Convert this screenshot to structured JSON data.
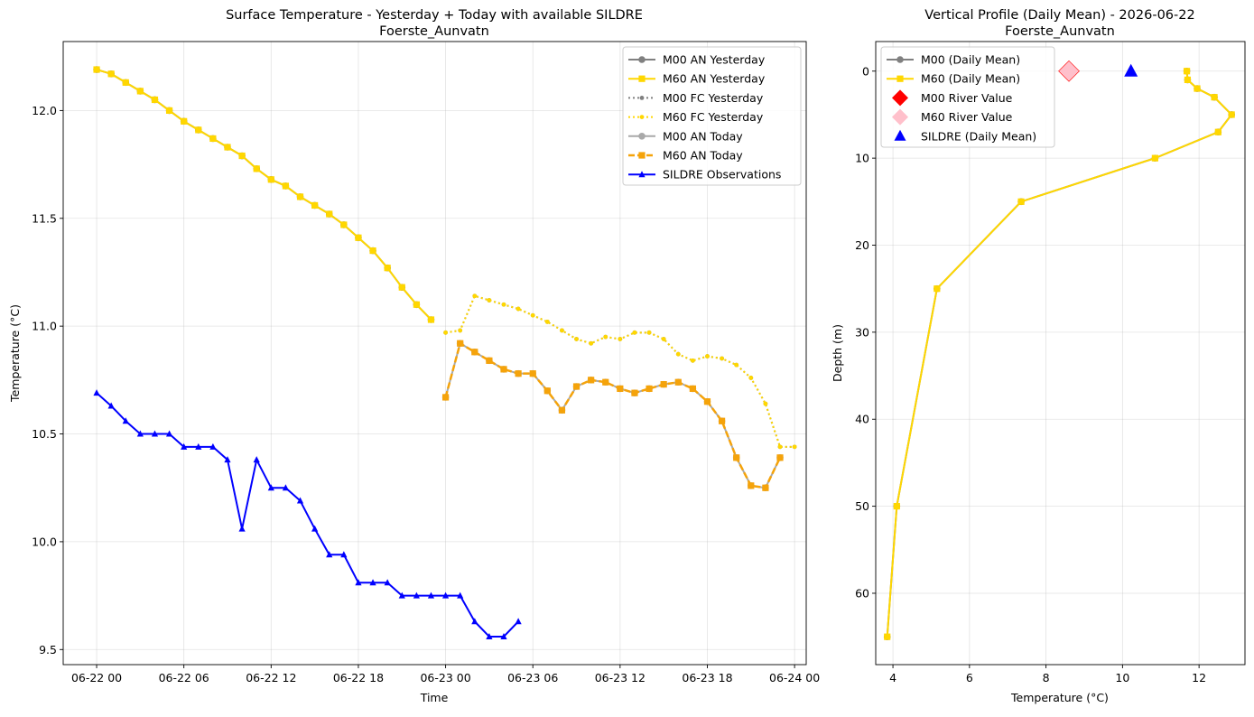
{
  "chart_data": [
    {
      "type": "line",
      "title_line1": "Surface Temperature - Yesterday + Today with available SILDRE",
      "title_line2": "Foerste_Aunvatn",
      "xlabel": "Time",
      "ylabel": "Temperature (°C)",
      "xlim_hours": [
        -2.3,
        48.8
      ],
      "ylim": [
        9.43,
        12.32
      ],
      "x_unit": "hours since 2026-06-22 00:00",
      "xticks": [
        {
          "x": 0,
          "label": "06-22 00"
        },
        {
          "x": 6,
          "label": "06-22 06"
        },
        {
          "x": 12,
          "label": "06-22 12"
        },
        {
          "x": 18,
          "label": "06-22 18"
        },
        {
          "x": 24,
          "label": "06-23 00"
        },
        {
          "x": 30,
          "label": "06-23 06"
        },
        {
          "x": 36,
          "label": "06-23 12"
        },
        {
          "x": 42,
          "label": "06-23 18"
        },
        {
          "x": 48,
          "label": "06-24 00"
        }
      ],
      "yticks": [
        9.5,
        10.0,
        10.5,
        11.0,
        11.5,
        12.0
      ],
      "grid": true,
      "legend_position": "upper right",
      "series": [
        {
          "name": "M00 AN Yesterday",
          "color": "#808080",
          "style": "solid",
          "marker": "circle",
          "width": 2,
          "x": [
            0,
            1,
            2,
            3,
            4,
            5,
            6,
            7,
            8,
            9,
            10,
            11,
            12,
            13,
            14,
            15,
            16,
            17,
            18,
            19,
            20,
            21,
            22,
            23
          ],
          "y": [
            12.19,
            12.17,
            12.13,
            12.09,
            12.05,
            12.0,
            11.95,
            11.91,
            11.87,
            11.83,
            11.79,
            11.73,
            11.68,
            11.65,
            11.6,
            11.56,
            11.52,
            11.47,
            11.41,
            11.35,
            11.27,
            11.18,
            11.1,
            11.03
          ]
        },
        {
          "name": "M60 AN Yesterday",
          "color": "#FFD700",
          "style": "solid",
          "marker": "square",
          "width": 2,
          "x": [
            0,
            1,
            2,
            3,
            4,
            5,
            6,
            7,
            8,
            9,
            10,
            11,
            12,
            13,
            14,
            15,
            16,
            17,
            18,
            19,
            20,
            21,
            22,
            23
          ],
          "y": [
            12.19,
            12.17,
            12.13,
            12.09,
            12.05,
            12.0,
            11.95,
            11.91,
            11.87,
            11.83,
            11.79,
            11.73,
            11.68,
            11.65,
            11.6,
            11.56,
            11.52,
            11.47,
            11.41,
            11.35,
            11.27,
            11.18,
            11.1,
            11.03
          ]
        },
        {
          "name": "M00 FC Yesterday",
          "color": "#808080",
          "style": "dotted",
          "marker": "circle-small",
          "width": 2,
          "x": [
            24,
            25,
            26,
            27,
            28,
            29,
            30,
            31,
            32,
            33,
            34,
            35,
            36,
            37,
            38,
            39,
            40,
            41,
            42,
            43,
            44,
            45,
            46,
            47,
            48
          ],
          "y": [
            10.97,
            10.98,
            11.14,
            11.12,
            11.1,
            11.08,
            11.05,
            11.02,
            10.98,
            10.94,
            10.92,
            10.95,
            10.94,
            10.97,
            10.97,
            10.94,
            10.87,
            10.84,
            10.86,
            10.85,
            10.82,
            10.76,
            10.64,
            10.44,
            10.44
          ]
        },
        {
          "name": "M60 FC Yesterday",
          "color": "#FFD700",
          "style": "dotted",
          "marker": "circle-small",
          "width": 2,
          "x": [
            24,
            25,
            26,
            27,
            28,
            29,
            30,
            31,
            32,
            33,
            34,
            35,
            36,
            37,
            38,
            39,
            40,
            41,
            42,
            43,
            44,
            45,
            46,
            47,
            48
          ],
          "y": [
            10.97,
            10.98,
            11.14,
            11.12,
            11.1,
            11.08,
            11.05,
            11.02,
            10.98,
            10.94,
            10.92,
            10.95,
            10.94,
            10.97,
            10.97,
            10.94,
            10.87,
            10.84,
            10.86,
            10.85,
            10.82,
            10.76,
            10.64,
            10.44,
            10.44
          ]
        },
        {
          "name": "M00 AN Today",
          "color": "#A9A9A9",
          "style": "solid",
          "marker": "circle",
          "width": 2,
          "x": [
            24,
            25,
            26,
            27,
            28,
            29,
            30,
            31,
            32,
            33,
            34,
            35,
            36,
            37,
            38,
            39,
            40,
            41,
            42,
            43,
            44,
            45,
            46,
            47
          ],
          "y": [
            10.67,
            10.92,
            10.88,
            10.84,
            10.8,
            10.78,
            10.78,
            10.7,
            10.61,
            10.72,
            10.75,
            10.74,
            10.71,
            10.69,
            10.71,
            10.73,
            10.74,
            10.71,
            10.65,
            10.56,
            10.39,
            10.26,
            10.25,
            10.39
          ]
        },
        {
          "name": "M60 AN Today",
          "color": "#F5A30A",
          "style": "dashed",
          "marker": "square",
          "width": 2.5,
          "x": [
            24,
            25,
            26,
            27,
            28,
            29,
            30,
            31,
            32,
            33,
            34,
            35,
            36,
            37,
            38,
            39,
            40,
            41,
            42,
            43,
            44,
            45,
            46,
            47
          ],
          "y": [
            10.67,
            10.92,
            10.88,
            10.84,
            10.8,
            10.78,
            10.78,
            10.7,
            10.61,
            10.72,
            10.75,
            10.74,
            10.71,
            10.69,
            10.71,
            10.73,
            10.74,
            10.71,
            10.65,
            10.56,
            10.39,
            10.26,
            10.25,
            10.39
          ]
        },
        {
          "name": "SILDRE Observations",
          "color": "#0000FF",
          "style": "solid",
          "marker": "triangle",
          "width": 2,
          "x": [
            0,
            1,
            2,
            3,
            4,
            5,
            6,
            7,
            8,
            9,
            10,
            11,
            12,
            13,
            14,
            15,
            16,
            17,
            18,
            19,
            20,
            21,
            22,
            23,
            24,
            25,
            26,
            27,
            28,
            29
          ],
          "y": [
            10.69,
            10.63,
            10.56,
            10.5,
            10.5,
            10.5,
            10.44,
            10.44,
            10.44,
            10.38,
            10.06,
            10.38,
            10.25,
            10.25,
            10.19,
            10.06,
            9.94,
            9.94,
            9.81,
            9.81,
            9.81,
            9.75,
            9.75,
            9.75,
            9.75,
            9.75,
            9.63,
            9.56,
            9.56,
            9.63
          ]
        }
      ]
    },
    {
      "type": "line",
      "title_line1": "Vertical Profile (Daily Mean) - 2026-06-22",
      "title_line2": "Foerste_Aunvatn",
      "xlabel": "Temperature (°C)",
      "ylabel": "Depth (m)",
      "xlim": [
        3.55,
        13.2
      ],
      "ylim": [
        68.2,
        -3.4
      ],
      "y_inverted": true,
      "xticks": [
        4,
        6,
        8,
        10,
        12
      ],
      "yticks": [
        0,
        10,
        20,
        30,
        40,
        50,
        60
      ],
      "grid": true,
      "legend_position": "upper left",
      "series": [
        {
          "name": "M00 (Daily Mean)",
          "color": "#808080",
          "style": "solid",
          "marker": "circle",
          "width": 2,
          "x": [
            11.68,
            11.7,
            11.95,
            12.4,
            12.85,
            12.5,
            10.85,
            7.35,
            5.15,
            4.1,
            3.85
          ],
          "y": [
            0,
            1,
            2,
            3,
            5,
            7,
            10,
            15,
            25,
            50,
            65
          ]
        },
        {
          "name": "M60 (Daily Mean)",
          "color": "#FFD700",
          "style": "solid",
          "marker": "square",
          "width": 2,
          "x": [
            11.68,
            11.7,
            11.95,
            12.4,
            12.85,
            12.5,
            10.85,
            7.35,
            5.15,
            4.1,
            3.85
          ],
          "y": [
            0,
            1,
            2,
            3,
            5,
            7,
            10,
            15,
            25,
            50,
            65
          ]
        },
        {
          "name": "M00 River Value",
          "color": "#FF0000",
          "style": "none",
          "marker": "diamond-open",
          "x": [
            8.6
          ],
          "y": [
            0
          ]
        },
        {
          "name": "M60 River Value",
          "color": "#FFC0CB",
          "style": "none",
          "marker": "diamond",
          "x": [
            8.6
          ],
          "y": [
            0
          ]
        },
        {
          "name": "SILDRE (Daily Mean)",
          "color": "#0000FF",
          "style": "none",
          "marker": "triangle-large",
          "x": [
            10.22
          ],
          "y": [
            0
          ]
        }
      ]
    }
  ]
}
